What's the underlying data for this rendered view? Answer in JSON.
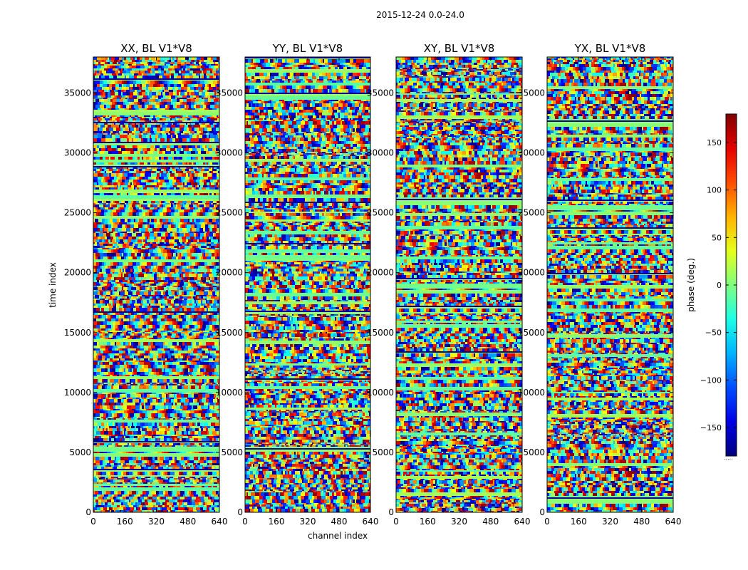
{
  "suptitle": "2015-12-24 0.0-24.0",
  "ylabel": "time index",
  "xlabel": "channel index",
  "colorbar": {
    "label": "phase (deg.)",
    "range": [
      -180,
      180
    ],
    "ticks": [
      -150,
      -100,
      -50,
      0,
      50,
      100,
      150
    ],
    "tick_labels": [
      "−150",
      "−100",
      "−50",
      "0",
      "50",
      "100",
      "150"
    ],
    "colormap": "jet",
    "footnote": "....."
  },
  "chart_data": [
    {
      "type": "heatmap",
      "title": "XX, BL V1*V8",
      "x_range": [
        0,
        640
      ],
      "y_range": [
        0,
        38000
      ],
      "x_ticks": [
        0,
        160,
        320,
        480,
        640
      ],
      "y_ticks": [
        0,
        5000,
        10000,
        15000,
        20000,
        25000,
        30000,
        35000
      ],
      "value_range": [
        -180,
        180
      ],
      "colormap": "jet"
    },
    {
      "type": "heatmap",
      "title": "YY, BL V1*V8",
      "x_range": [
        0,
        640
      ],
      "y_range": [
        0,
        38000
      ],
      "x_ticks": [
        0,
        160,
        320,
        480,
        640
      ],
      "y_ticks": [
        0,
        5000,
        10000,
        15000,
        20000,
        25000,
        30000,
        35000
      ],
      "value_range": [
        -180,
        180
      ],
      "colormap": "jet"
    },
    {
      "type": "heatmap",
      "title": "XY, BL V1*V8",
      "x_range": [
        0,
        640
      ],
      "y_range": [
        0,
        38000
      ],
      "x_ticks": [
        0,
        160,
        320,
        480,
        640
      ],
      "y_ticks": [
        0,
        5000,
        10000,
        15000,
        20000,
        25000,
        30000,
        35000
      ],
      "value_range": [
        -180,
        180
      ],
      "colormap": "jet"
    },
    {
      "type": "heatmap",
      "title": "YX, BL V1*V8",
      "x_range": [
        0,
        640
      ],
      "y_range": [
        0,
        38000
      ],
      "x_ticks": [
        0,
        160,
        320,
        480,
        640
      ],
      "y_ticks": [
        0,
        5000,
        10000,
        15000,
        20000,
        25000,
        30000,
        35000
      ],
      "value_range": [
        -180,
        180
      ],
      "colormap": "jet"
    }
  ]
}
